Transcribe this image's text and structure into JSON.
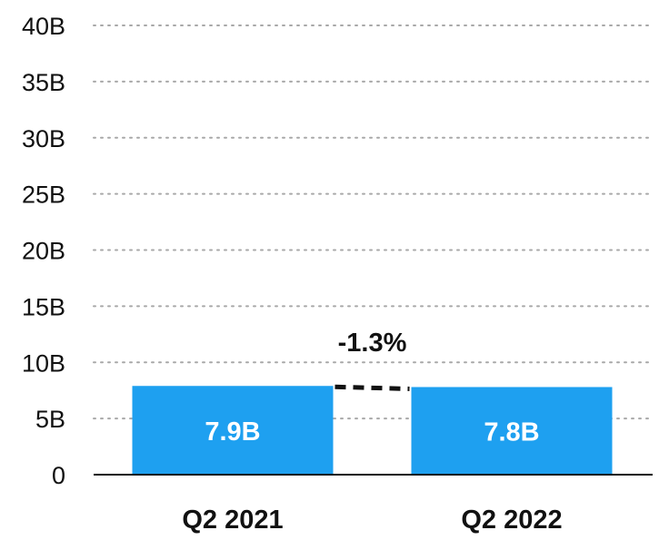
{
  "chart_data": {
    "type": "bar",
    "title": "",
    "xlabel": "",
    "ylabel": "",
    "categories": [
      "Q2 2021",
      "Q2 2022"
    ],
    "values": [
      7.9,
      7.8
    ],
    "value_labels": [
      "7.9B",
      "7.8B"
    ],
    "ylim": [
      0,
      40
    ],
    "y_ticks": [
      0,
      5,
      10,
      15,
      20,
      25,
      30,
      35,
      40
    ],
    "y_tick_labels": [
      "0",
      "5B",
      "10B",
      "15B",
      "20B",
      "25B",
      "30B",
      "35B",
      "40B"
    ],
    "grid": true,
    "grid_style": "dotted",
    "bar_color": "#1ea0f0",
    "change_annotation": {
      "label": "-1.3%",
      "from_category": "Q2 2021",
      "to_category": "Q2 2022"
    }
  }
}
